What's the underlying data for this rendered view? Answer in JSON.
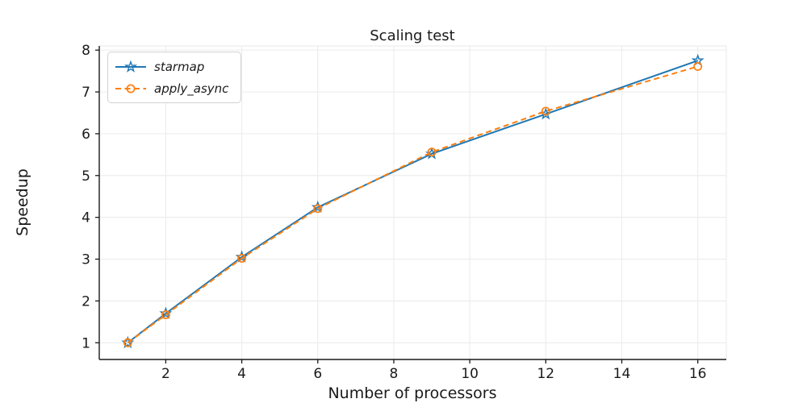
{
  "figure": {
    "background_color": "#ffffff",
    "axis_color": "#1a1a1a",
    "grid_color": "#ededed",
    "text_color": "#1a1a1a"
  },
  "chart_data": {
    "type": "line",
    "title": "Scaling test",
    "xlabel": "Number of processors",
    "ylabel": "Speedup",
    "x": [
      1,
      2,
      4,
      6,
      9,
      12,
      16
    ],
    "series": [
      {
        "name": "starmap",
        "color": "#1f77b4",
        "line_style": "solid",
        "marker": "star",
        "values": [
          1.0,
          1.7,
          3.05,
          4.24,
          5.52,
          6.47,
          7.75
        ]
      },
      {
        "name": "apply_async",
        "color": "#ff7f0e",
        "line_style": "dashed",
        "marker": "circle",
        "values": [
          1.0,
          1.67,
          3.02,
          4.21,
          5.56,
          6.54,
          7.61
        ]
      }
    ],
    "xlim": [
      0.25,
      16.75
    ],
    "ylim": [
      0.6,
      8.1
    ],
    "x_ticks": [
      2,
      4,
      6,
      8,
      10,
      12,
      14,
      16
    ],
    "y_ticks": [
      1,
      2,
      3,
      4,
      5,
      6,
      7,
      8
    ],
    "grid": true,
    "legend_position": "upper left"
  }
}
